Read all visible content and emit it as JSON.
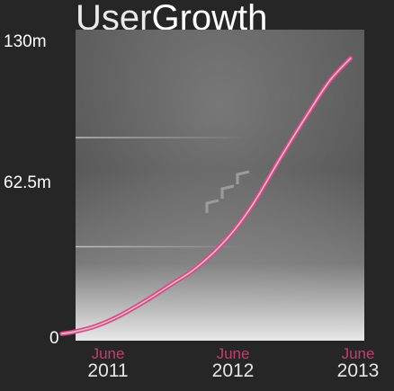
{
  "header": {
    "title_light": "User",
    "title_bold": "Growth"
  },
  "colors": {
    "background": "#262626",
    "panel_top": "#5a5a5a",
    "panel_bottom": "#e6e6e6",
    "line": "#d84a86",
    "month_label": "#c23e72",
    "chevron": "#9a9a9a"
  },
  "chevrons": {
    "icon": "chevron-up-right-icon",
    "count": 3
  },
  "chart_data": {
    "type": "line",
    "title": "UserGrowth",
    "xlabel": "",
    "ylabel": "",
    "ylim": [
      0,
      130
    ],
    "xlim": [
      2011.0,
      2013.1
    ],
    "grid": false,
    "y_ticks": [
      {
        "value": 0,
        "label": "0"
      },
      {
        "value": 62.5,
        "label": "62.5m"
      },
      {
        "value": 130,
        "label": "130m"
      }
    ],
    "x_ticks": [
      {
        "value": 2011.0,
        "month": "June",
        "year": "2011"
      },
      {
        "value": 2012.0,
        "month": "June",
        "year": "2012"
      },
      {
        "value": 2013.0,
        "month": "June",
        "year": "2013"
      }
    ],
    "series": [
      {
        "x": [
          2010.9,
          2011.0,
          2011.15,
          2011.3,
          2011.5,
          2011.7,
          2011.85,
          2012.0,
          2012.15,
          2012.3,
          2012.5,
          2012.7,
          2012.85,
          2013.0
        ],
        "values": [
          1.5,
          2.5,
          5,
          9,
          16,
          24,
          30,
          38,
          48,
          61,
          82,
          102,
          116,
          126
        ]
      }
    ]
  }
}
